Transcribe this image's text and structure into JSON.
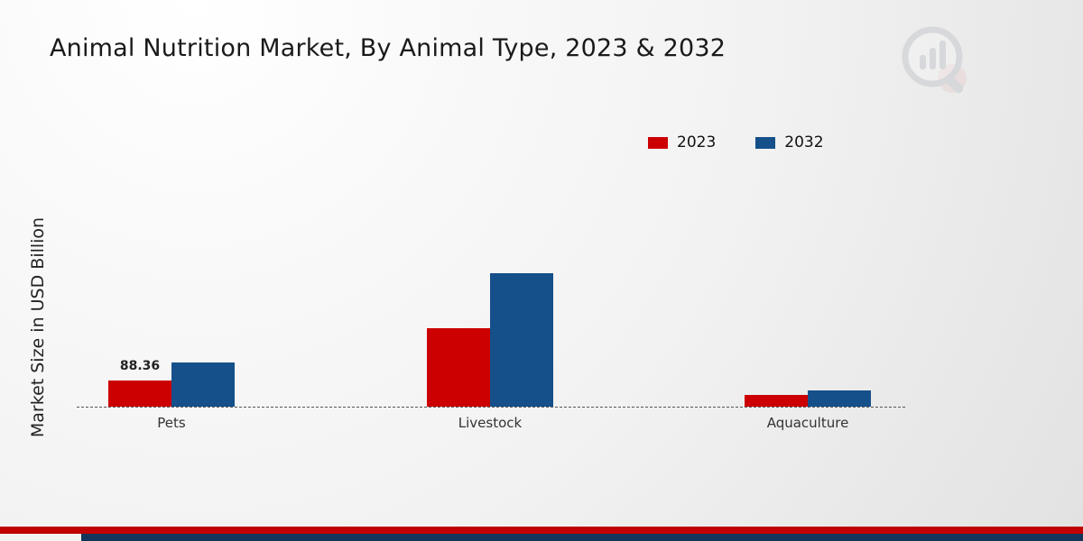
{
  "chart_data": {
    "type": "bar",
    "title": "Animal Nutrition Market, By Animal Type, 2023 & 2032",
    "ylabel": "Market Size in USD Billion",
    "xlabel": "",
    "categories": [
      "Pets",
      "Livestock",
      "Aquaculture"
    ],
    "series": [
      {
        "name": "2023",
        "color": "#cc0001",
        "values": [
          88.36,
          265,
          40
        ]
      },
      {
        "name": "2032",
        "color": "#15508a",
        "values": [
          150,
          450,
          55
        ]
      }
    ],
    "ylim": [
      0,
      460
    ],
    "grid": false,
    "legend_position": "top-right",
    "data_labels": [
      {
        "category": "Pets",
        "series": "2023",
        "text": "88.36"
      }
    ]
  },
  "legend": {
    "items": [
      {
        "label": "2023",
        "color": "#cc0001"
      },
      {
        "label": "2032",
        "color": "#15508a"
      }
    ]
  },
  "footer": {
    "red_bar_color": "#c00000",
    "navy_bar_color": "#12355b"
  },
  "watermark": {
    "icon": "market-research-logo"
  }
}
